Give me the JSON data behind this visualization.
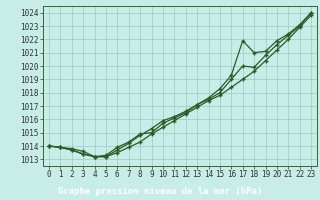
{
  "bg_color": "#c8ede8",
  "plot_bg_color": "#c8ede8",
  "grid_color": "#99ccbb",
  "line_color": "#2d5a27",
  "x_label": "Graphe pression niveau de la mer (hPa)",
  "xlim": [
    -0.5,
    23.5
  ],
  "ylim": [
    1012.5,
    1024.5
  ],
  "yticks": [
    1013,
    1014,
    1015,
    1016,
    1017,
    1018,
    1019,
    1020,
    1021,
    1022,
    1023,
    1024
  ],
  "xticks": [
    0,
    1,
    2,
    3,
    4,
    5,
    6,
    7,
    8,
    9,
    10,
    11,
    12,
    13,
    14,
    15,
    16,
    17,
    18,
    19,
    20,
    21,
    22,
    23
  ],
  "series1": [
    1014.0,
    1013.9,
    1013.8,
    1013.6,
    1013.2,
    1013.2,
    1013.5,
    1013.9,
    1014.3,
    1014.9,
    1015.4,
    1015.9,
    1016.4,
    1016.9,
    1017.4,
    1017.8,
    1018.4,
    1019.0,
    1019.6,
    1020.4,
    1021.2,
    1022.0,
    1022.9,
    1023.8
  ],
  "series2": [
    1014.0,
    1013.9,
    1013.7,
    1013.4,
    1013.2,
    1013.2,
    1013.7,
    1014.2,
    1014.8,
    1015.3,
    1015.9,
    1016.2,
    1016.6,
    1017.1,
    1017.5,
    1018.0,
    1019.0,
    1020.0,
    1019.9,
    1020.8,
    1021.6,
    1022.3,
    1023.0,
    1024.0
  ],
  "series3": [
    1014.0,
    1013.9,
    1013.7,
    1013.4,
    1013.2,
    1013.3,
    1013.9,
    1014.3,
    1014.9,
    1015.0,
    1015.7,
    1016.1,
    1016.5,
    1017.1,
    1017.6,
    1018.3,
    1019.3,
    1021.9,
    1021.0,
    1021.1,
    1021.9,
    1022.4,
    1023.1,
    1024.0
  ],
  "tick_fontsize": 5.5,
  "xlabel_fontsize": 6.5,
  "xlabel_bg": "#2d6b2d",
  "xlabel_fg": "#ffffff",
  "spine_color": "#336633",
  "tick_color": "#333333"
}
